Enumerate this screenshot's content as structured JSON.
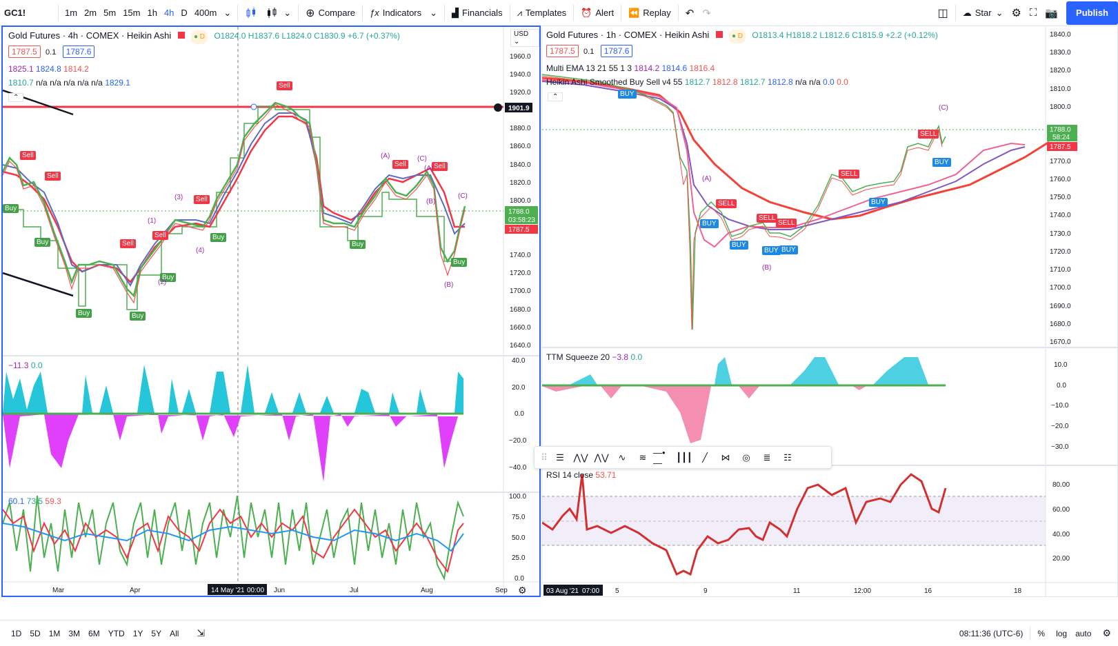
{
  "toolbar": {
    "symbol": "GC1!",
    "intervals": [
      "1m",
      "2m",
      "5m",
      "15m",
      "1h",
      "4h",
      "D",
      "400m"
    ],
    "active_interval": "4h",
    "compare": "Compare",
    "indicators": "Indicators",
    "financials": "Financials",
    "templates": "Templates",
    "alert": "Alert",
    "replay": "Replay",
    "layout_name": "Star",
    "publish": "Publish"
  },
  "left": {
    "title": "Gold Futures · 4h · COMEX · Heikin Ashi",
    "badge_d": "D",
    "ohlc": "O1824.0 H1837.6 L1824.0 C1830.9 +6.7 (+0.37%)",
    "price_box_sell": "1787.5",
    "price_step": "0.1",
    "price_box_buy": "1787.6",
    "line2": [
      "1825.1",
      "1824.8",
      "1814.2"
    ],
    "line3": [
      "1810.7",
      "n/a",
      "n/a",
      "n/a",
      "n/a",
      "n/a",
      "1829.1"
    ],
    "currency": "USD",
    "price_axis": [
      "1960.0",
      "1940.0",
      "1920.0",
      "1900.0",
      "1880.0",
      "1860.0",
      "1840.0",
      "1820.0",
      "1800.0",
      "1780.0",
      "1760.0",
      "1740.0",
      "1720.0",
      "1700.0",
      "1680.0",
      "1660.0",
      "1640.0"
    ],
    "hline_value": "1901.9",
    "last_price": "1788.0",
    "countdown": "03:58:23",
    "sell_price": "1787.5",
    "squeeze_legend": [
      "−11.3",
      "0.0"
    ],
    "squeeze_axis": [
      "40.0",
      "20.0",
      "0.0",
      "−20.0",
      "−40.0"
    ],
    "stoch_legend": [
      "60.1",
      "73.5",
      "59.3"
    ],
    "stoch_axis": [
      "100.0",
      "75.0",
      "50.0",
      "25.0",
      "0.0"
    ],
    "time_axis": [
      "Mar",
      "Apr",
      "Jun",
      "Jul",
      "Aug",
      "Sep"
    ],
    "cursor_time": "14 May '21",
    "cursor_clock": "00:00",
    "signals_buy": [
      "Buy",
      "Buy",
      "Buy",
      "Buy",
      "Buy",
      "Buy",
      "Buy",
      "Buy"
    ],
    "signals_sell": [
      "Sell",
      "Sell",
      "Sell",
      "Sell",
      "Sell",
      "Sell",
      "Sell",
      "Sell"
    ],
    "waves": [
      "(1)",
      "(2)",
      "(3)",
      "(4)",
      "(A)",
      "(B)",
      "(C)",
      "(A)",
      "(B)",
      "(C)"
    ]
  },
  "right": {
    "title": "Gold Futures · 1h · COMEX · Heikin Ashi",
    "badge_d": "D",
    "ohlc": "O1813.4 H1818.2 L1812.6 C1815.9 +2.2 (+0.12%)",
    "price_box_sell": "1787.5",
    "price_step": "0.1",
    "price_box_buy": "1787.6",
    "ema_label": "Multi EMA 13 21 55 1 3",
    "ema_values": [
      "1814.2",
      "1814.6",
      "1816.4"
    ],
    "ha_label": "Heikin Ashi Smoothed Buy Sell v4 55",
    "ha_values": [
      "1812.7",
      "1812.8",
      "1812.7",
      "1812.8",
      "n/a",
      "n/a",
      "0.0",
      "0.0"
    ],
    "price_axis": [
      "1840.0",
      "1830.0",
      "1820.0",
      "1810.0",
      "1800.0",
      "1790.0",
      "1780.0",
      "1770.0",
      "1760.0",
      "1750.0",
      "1740.0",
      "1730.0",
      "1720.0",
      "1710.0",
      "1700.0",
      "1690.0",
      "1680.0",
      "1670.0"
    ],
    "last_price": "1788.0",
    "countdown": "58:24",
    "sell_price": "1787.5",
    "squeeze_legend": "TTM Squeeze 20",
    "squeeze_values": [
      "−3.8",
      "0.0"
    ],
    "squeeze_axis": [
      "10.0",
      "0.0",
      "−10.0",
      "−20.0",
      "−30.0"
    ],
    "rsi_legend": "RSI 14 close",
    "rsi_value": "53.71",
    "rsi_axis": [
      "80.00",
      "60.00",
      "40.00",
      "20.00"
    ],
    "time_axis": [
      "5",
      "9",
      "11",
      "12:00",
      "16",
      "18"
    ],
    "cursor_time": "03 Aug '21",
    "cursor_clock": "07:00",
    "signals_buy": [
      "BUY",
      "BUY",
      "BUY",
      "BUY",
      "BUY",
      "BUY",
      "BUY"
    ],
    "signals_sell": [
      "SELL",
      "SELL",
      "SELL",
      "SELL",
      "SELL"
    ],
    "waves": [
      "(A)",
      "(B)",
      "(C)"
    ]
  },
  "bottom": {
    "ranges": [
      "1D",
      "5D",
      "1M",
      "3M",
      "6M",
      "YTD",
      "1Y",
      "5Y",
      "All"
    ],
    "clock": "08:11:36 (UTC-6)",
    "percent": "%",
    "log": "log",
    "auto": "auto"
  },
  "colors": {
    "accent": "#2962ff",
    "up": "#4caf50",
    "down": "#ef5350",
    "cyan": "#26c6da",
    "magenta": "#e040fb"
  }
}
